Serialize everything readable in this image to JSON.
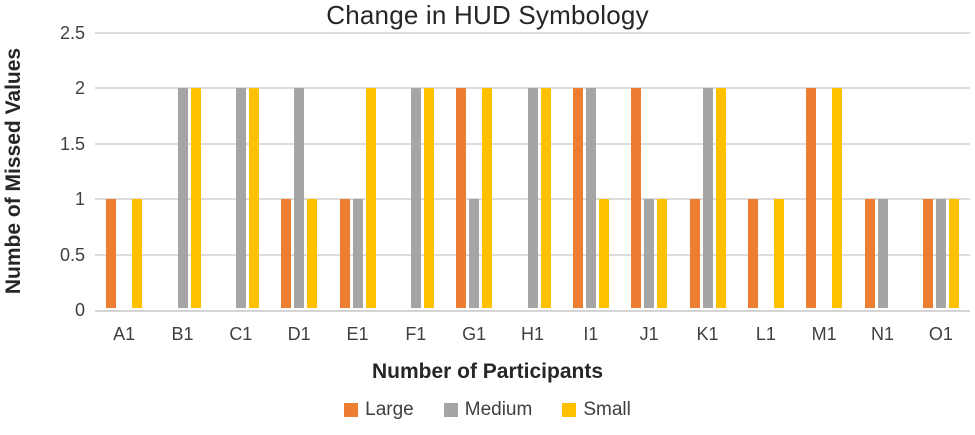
{
  "chart_data": {
    "type": "bar",
    "title": "Change in HUD Symbology",
    "xlabel": "Number of Participants",
    "ylabel": "Numbe of Missed Values",
    "categories": [
      "A1",
      "B1",
      "C1",
      "D1",
      "E1",
      "F1",
      "G1",
      "H1",
      "I1",
      "J1",
      "K1",
      "L1",
      "M1",
      "N1",
      "O1"
    ],
    "series": [
      {
        "name": "Large",
        "color": "#ED7D31",
        "values": [
          1,
          0,
          0,
          1,
          1,
          0,
          2,
          0,
          2,
          2,
          1,
          1,
          2,
          1,
          1
        ]
      },
      {
        "name": "Medium",
        "color": "#A5A5A5",
        "values": [
          0,
          2,
          2,
          2,
          1,
          2,
          1,
          2,
          2,
          1,
          2,
          0,
          0,
          1,
          1
        ]
      },
      {
        "name": "Small",
        "color": "#FFC000",
        "values": [
          1,
          2,
          2,
          1,
          2,
          2,
          2,
          2,
          1,
          1,
          2,
          1,
          2,
          0,
          1
        ]
      }
    ],
    "ylim": [
      0,
      2.5
    ],
    "y_ticks": [
      0,
      0.5,
      1,
      1.5,
      2,
      2.5
    ],
    "grid": "horizontal",
    "legend_position": "bottom",
    "colors": {
      "gridline": "#DCDCDC",
      "tick_text": "#404040",
      "title_text": "#262626"
    }
  }
}
